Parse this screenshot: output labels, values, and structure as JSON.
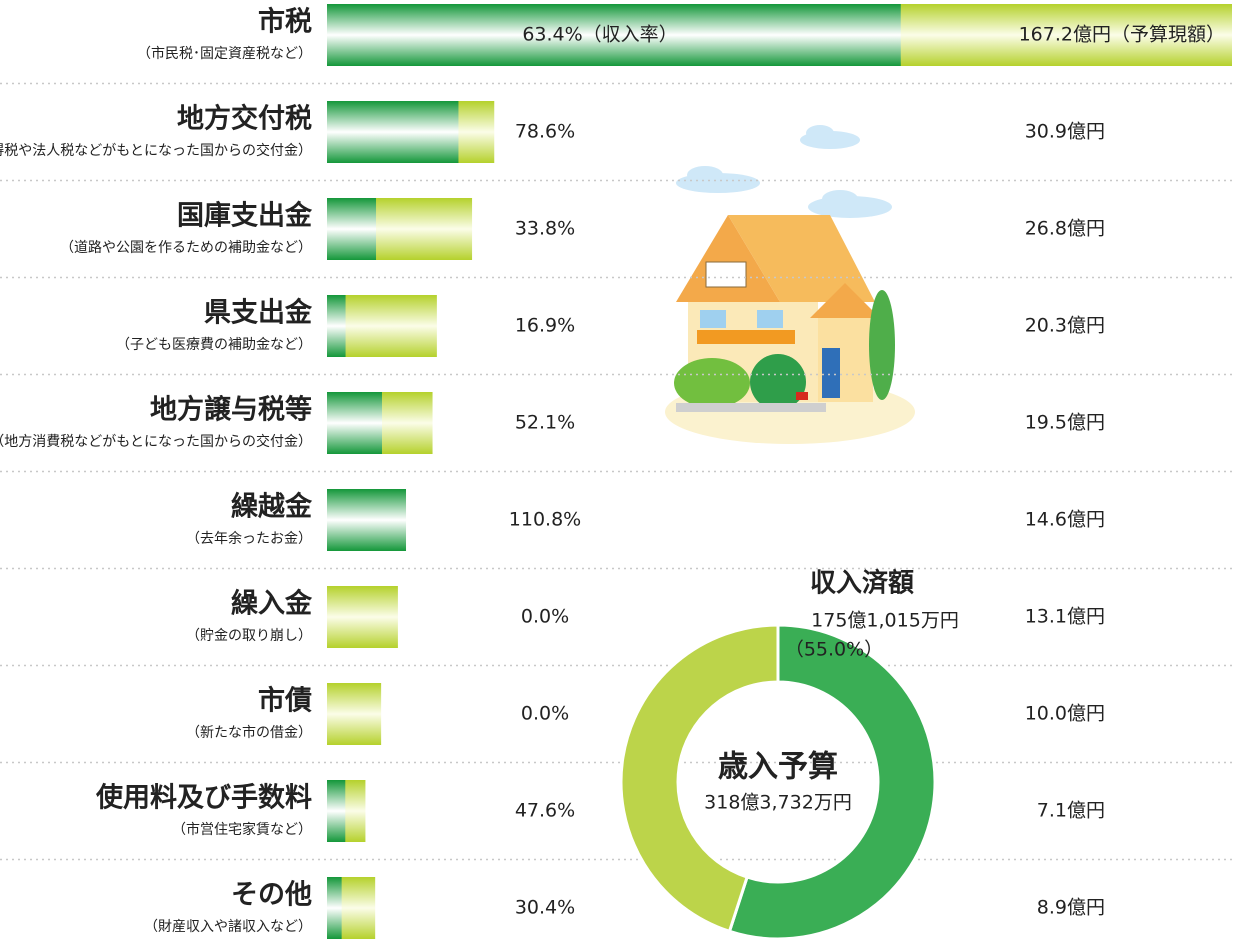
{
  "chart_data": [
    {
      "type": "bar",
      "categories": [
        "市税",
        "地方交付税",
        "国庫支出金",
        "県支出金",
        "地方譲与税等",
        "繰越金",
        "繰入金",
        "市債",
        "使用料及び手数料",
        "その他"
      ],
      "category_notes": [
        "（市民税･固定資産税など）",
        "（所得税や法人税などがもとになった国からの交付金）",
        "（道路や公園を作るための補助金など）",
        "（子ども医療費の補助金など）",
        "（地方消費税などがもとになった国からの交付金）",
        "（去年余ったお金）",
        "（貯金の取り崩し）",
        "（新たな市の借金）",
        "（市営住宅家賃など）",
        "（財産収入や諸収入など）"
      ],
      "series": [
        {
          "name": "収入率",
          "color": "#1a9a3c",
          "values": [
            63.4,
            78.6,
            33.8,
            16.9,
            52.1,
            110.8,
            0.0,
            0.0,
            47.6,
            30.4
          ],
          "value_labels": [
            "63.4%（収入率）",
            "78.6%",
            "33.8%",
            "16.9%",
            "52.1%",
            "110.8%",
            "0.0%",
            "0.0%",
            "47.6%",
            "30.4%"
          ]
        },
        {
          "name": "予算現額",
          "color": "#b8d030",
          "values": [
            167.2,
            30.9,
            26.8,
            20.3,
            19.5,
            14.6,
            13.1,
            10.0,
            7.1,
            8.9
          ],
          "value_labels": [
            "167.2億円（予算現額）",
            "30.9億円",
            "26.8億円",
            "20.3億円",
            "19.5億円",
            "14.6億円",
            "13.1億円",
            "10.0億円",
            "7.1億円",
            "8.9億円"
          ]
        }
      ]
    },
    {
      "type": "pie",
      "center_title": "歳入予算",
      "center_text": "318億3,732万円",
      "categories": [
        "収入済額",
        null
      ],
      "values": [
        55.0,
        45.0
      ],
      "value_labels": [
        "（55.0%）",
        null
      ],
      "amounts": [
        "175億1,015万円",
        null
      ],
      "colors": [
        "#3aae55",
        "#bcd44a"
      ]
    }
  ]
}
